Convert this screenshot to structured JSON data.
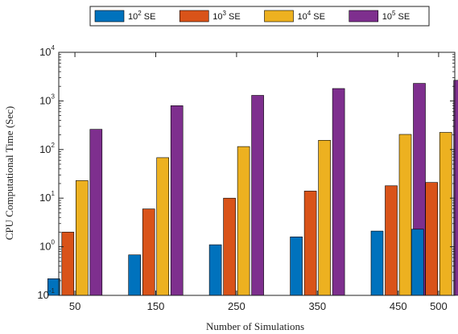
{
  "chart_data": {
    "type": "bar",
    "yscale": "log",
    "ylim": [
      0.1,
      10000
    ],
    "xlabel": "Number of Simulations",
    "ylabel": "CPU Computational Time (Sec)",
    "x": [
      50,
      150,
      250,
      350,
      450,
      500
    ],
    "x_tick_labels": [
      "50",
      "150",
      "250",
      "350",
      "450",
      "500"
    ],
    "y_tick_labels": [
      {
        "base": "10",
        "exp": "-1"
      },
      {
        "base": "10",
        "exp": "0"
      },
      {
        "base": "10",
        "exp": "1"
      },
      {
        "base": "10",
        "exp": "2"
      },
      {
        "base": "10",
        "exp": "3"
      },
      {
        "base": "10",
        "exp": "4"
      }
    ],
    "legend_position": "top",
    "series": [
      {
        "name": "10",
        "name_exp": "2",
        "name_suffix": " SE",
        "color": "#0072BD",
        "values": [
          0.22,
          0.68,
          1.1,
          1.6,
          2.1,
          2.3
        ]
      },
      {
        "name": "10",
        "name_exp": "3",
        "name_suffix": " SE",
        "color": "#D95319",
        "values": [
          2.0,
          6.0,
          10.0,
          14.0,
          18.0,
          21.0
        ]
      },
      {
        "name": "10",
        "name_exp": "4",
        "name_suffix": " SE",
        "color": "#EDB120",
        "values": [
          23,
          68,
          115,
          155,
          205,
          225
        ]
      },
      {
        "name": "10",
        "name_exp": "5",
        "name_suffix": " SE",
        "color": "#7E2F8E",
        "values": [
          260,
          800,
          1300,
          1800,
          2300,
          2650
        ]
      }
    ]
  }
}
